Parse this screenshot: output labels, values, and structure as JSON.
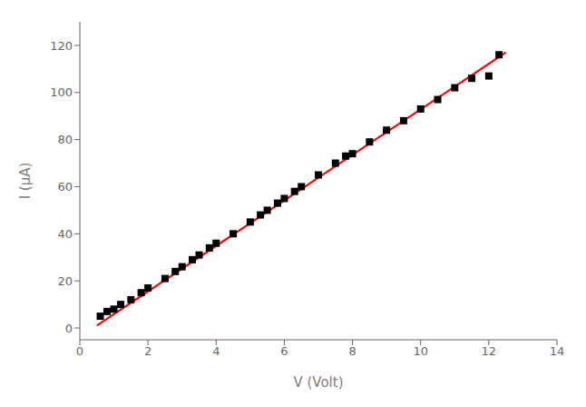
{
  "chart_data": {
    "type": "scatter",
    "xlabel": "V (Volt)",
    "ylabel": "I (μA)",
    "xlim": [
      0,
      14
    ],
    "ylim": [
      -5,
      130
    ],
    "xticks": [
      0,
      2,
      4,
      6,
      8,
      10,
      12,
      14
    ],
    "yticks": [
      0,
      20,
      40,
      60,
      80,
      100,
      120
    ],
    "grid": false,
    "series": [
      {
        "type": "line",
        "color": "#ff0000",
        "line_style": "solid",
        "x": [
          0.5,
          12.5
        ],
        "values": [
          1.0,
          117.0
        ]
      },
      {
        "type": "scatter",
        "color": "#000000",
        "marker": "square",
        "x": [
          0.6,
          0.8,
          1.0,
          1.2,
          1.5,
          1.8,
          2.0,
          2.5,
          2.8,
          3.0,
          3.3,
          3.5,
          3.8,
          4.0,
          4.5,
          5.0,
          5.3,
          5.5,
          5.8,
          6.0,
          6.3,
          6.5,
          7.0,
          7.5,
          7.8,
          8.0,
          8.5,
          9.0,
          9.5,
          10.0,
          10.5,
          11.0,
          11.5,
          12.0,
          12.3
        ],
        "values": [
          5,
          7,
          8,
          10,
          12,
          15,
          17,
          21,
          24,
          26,
          29,
          31,
          34,
          36,
          40,
          45,
          48,
          50,
          53,
          55,
          58,
          60,
          65,
          70,
          73,
          74,
          79,
          84,
          88,
          93,
          97,
          102,
          106,
          107,
          116
        ]
      }
    ]
  }
}
